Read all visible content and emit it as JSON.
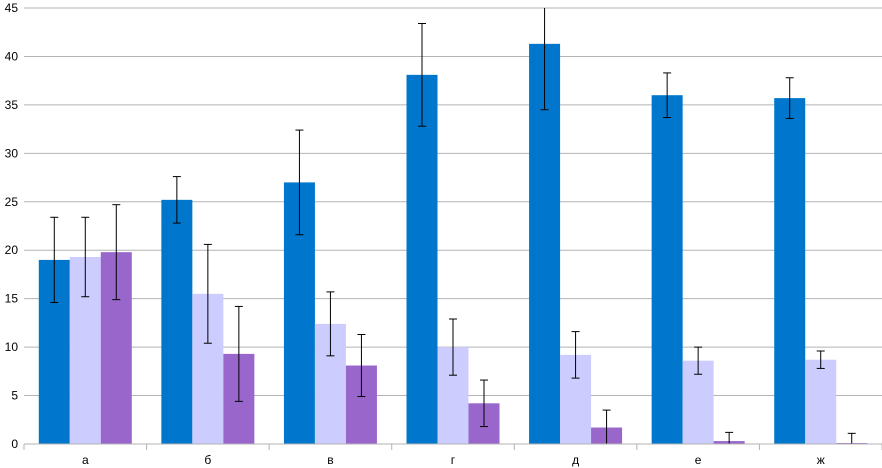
{
  "chart_data": {
    "type": "bar",
    "categories": [
      "а",
      "б",
      "в",
      "г",
      "д",
      "е",
      "ж"
    ],
    "series": [
      {
        "color": "#0077cc",
        "values": [
          19.0,
          25.2,
          27.0,
          38.1,
          41.3,
          36.0,
          35.7
        ],
        "error": [
          4.4,
          2.4,
          5.4,
          5.3,
          6.8,
          2.3,
          2.1
        ]
      },
      {
        "color": "#ccccff",
        "values": [
          19.3,
          15.5,
          12.4,
          10.0,
          9.2,
          8.6,
          8.7
        ],
        "error": [
          4.1,
          5.1,
          3.3,
          2.9,
          2.4,
          1.4,
          0.9
        ]
      },
      {
        "color": "#9966cc",
        "values": [
          19.8,
          9.3,
          8.1,
          4.2,
          1.7,
          0.3,
          0.1
        ],
        "error": [
          4.9,
          4.9,
          3.2,
          2.4,
          1.8,
          0.9,
          1.0
        ]
      }
    ],
    "ylim": [
      0,
      45
    ],
    "yticks": [
      "0",
      "5",
      "10",
      "15",
      "20",
      "25",
      "30",
      "35",
      "40",
      "45"
    ],
    "grid": true,
    "gridColor": "#b3b3b3",
    "errorBarColor": "#000000"
  }
}
